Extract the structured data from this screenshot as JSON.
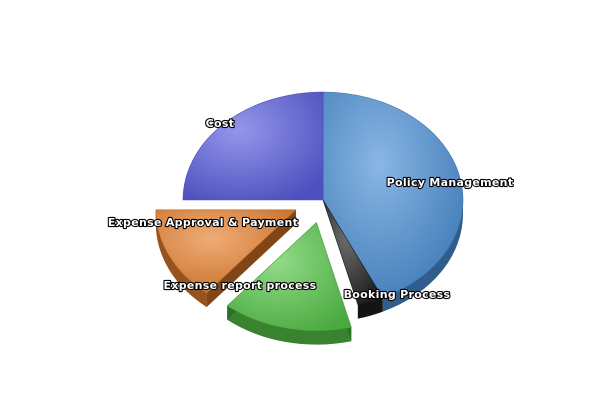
{
  "chart_data": {
    "type": "pie",
    "style": "3d-exploded",
    "title": "",
    "slices": [
      {
        "label": "Policy Management",
        "value": 43,
        "color": "#4a8fd6",
        "exploded": false
      },
      {
        "label": "Booking Process",
        "value": 3,
        "color": "#1f1f1f",
        "exploded": false
      },
      {
        "label": "Expense report process",
        "value": 15,
        "color": "#58c84a",
        "exploded": true
      },
      {
        "label": "Expense Approval & Payment",
        "value": 14,
        "color": "#e8802c",
        "exploded": true
      },
      {
        "label": "Cost",
        "value": 25,
        "color": "#5a5ee0",
        "exploded": false
      }
    ]
  }
}
